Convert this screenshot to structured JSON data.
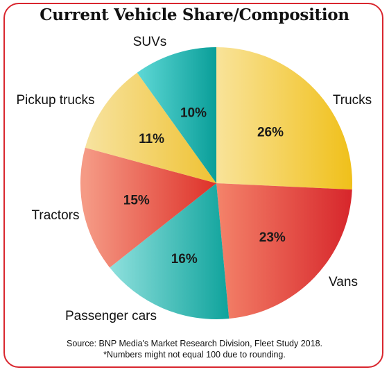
{
  "chart_data": {
    "type": "pie",
    "title": "Current Vehicle Share/Composition",
    "slices": [
      {
        "label": "Trucks",
        "value": 26,
        "value_label": "26%"
      },
      {
        "label": "Vans",
        "value": 23,
        "value_label": "23%"
      },
      {
        "label": "Passenger cars",
        "value": 16,
        "value_label": "16%"
      },
      {
        "label": "Tractors",
        "value": 15,
        "value_label": "15%"
      },
      {
        "label": "Pickup trucks",
        "value": 11,
        "value_label": "11%"
      },
      {
        "label": "SUVs",
        "value": 10,
        "value_label": "10%"
      }
    ],
    "colors": {
      "Trucks": [
        "#f9e39a",
        "#f0c01a"
      ],
      "Vans": [
        "#f4836a",
        "#d7262b"
      ],
      "Passenger cars": [
        "#8fe0dd",
        "#0fa39c"
      ],
      "Tractors": [
        "#f59a85",
        "#de3129"
      ],
      "Pickup trucks": [
        "#f7e3a0",
        "#efc233"
      ],
      "SUVs": [
        "#5ed8d6",
        "#0a9e99"
      ]
    },
    "source": "Source: BNP Media's Market Research Division, Fleet Study 2018.",
    "note": "*Numbers might not equal 100 due to rounding."
  },
  "frame_color": "#d9262e"
}
